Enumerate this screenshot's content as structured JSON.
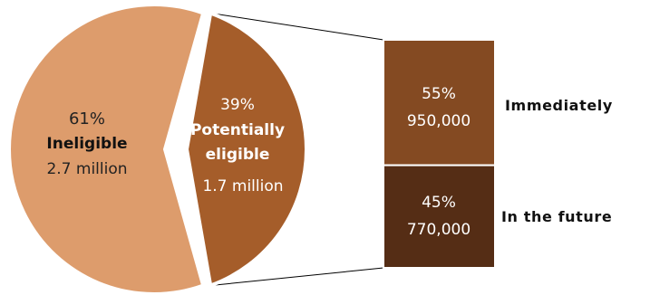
{
  "chart_data": {
    "type": "pie",
    "slices": [
      {
        "name": "Ineligible",
        "percent": 61,
        "amount": "2.7 million",
        "color": "#dd9c6c"
      },
      {
        "name": "Potentially eligible",
        "percent": 39,
        "amount": "1.7 million",
        "color": "#a55d2a"
      }
    ],
    "breakdown": {
      "of": "Potentially eligible",
      "bars": [
        {
          "name": "Immediately",
          "percent": 55,
          "amount": "950,000",
          "color": "#844a22"
        },
        {
          "name": "In the future",
          "percent": 45,
          "amount": "770,000",
          "color": "#552d15"
        }
      ]
    }
  },
  "labels": {
    "ineligible_pct": "61%",
    "ineligible_name": "Ineligible",
    "ineligible_amount": "2.7 million",
    "eligible_pct": "39%",
    "eligible_name_line1": "Potentially",
    "eligible_name_line2": "eligible",
    "eligible_amount": "1.7 million",
    "immediately_pct": "55%",
    "immediately_amount": "950,000",
    "immediately_name": "Immediately",
    "future_pct": "45%",
    "future_amount": "770,000",
    "future_name": "In the future"
  }
}
